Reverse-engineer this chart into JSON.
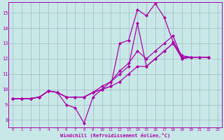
{
  "background_color": "#c8e8e8",
  "grid_color": "#a0b8c0",
  "line_color": "#aa00aa",
  "marker": "D",
  "markersize": 2.0,
  "linewidth": 0.9,
  "xlabel": "Windchill (Refroidissement éolien,°C)",
  "xlim": [
    -0.5,
    23.5
  ],
  "ylim": [
    7.5,
    15.7
  ],
  "xticks": [
    0,
    1,
    2,
    3,
    4,
    5,
    6,
    7,
    8,
    9,
    10,
    11,
    12,
    13,
    14,
    15,
    16,
    17,
    18,
    19,
    20,
    21,
    22,
    23
  ],
  "yticks": [
    8,
    9,
    10,
    11,
    12,
    13,
    14,
    15
  ],
  "series": [
    [
      9.4,
      9.4,
      9.4,
      9.5,
      9.9,
      9.8,
      9.0,
      8.8,
      7.8,
      9.5,
      10.0,
      10.2,
      13.0,
      13.2,
      15.2,
      14.8,
      15.6,
      14.7,
      13.1,
      12.2,
      12.1,
      12.1,
      12.1
    ],
    [
      9.4,
      9.4,
      9.4,
      9.5,
      9.9,
      9.8,
      9.5,
      9.5,
      9.5,
      9.8,
      10.0,
      10.5,
      11.0,
      11.5,
      14.3,
      11.5,
      12.0,
      12.5,
      13.0,
      12.1,
      12.1,
      12.1,
      12.1
    ],
    [
      9.4,
      9.4,
      9.4,
      9.5,
      9.9,
      9.8,
      9.5,
      9.5,
      9.5,
      9.8,
      10.2,
      10.5,
      11.2,
      11.7,
      12.5,
      12.0,
      12.5,
      13.0,
      13.5,
      12.0,
      12.1,
      12.1,
      12.1
    ],
    [
      9.4,
      9.4,
      9.4,
      9.5,
      9.9,
      9.8,
      9.5,
      9.5,
      9.5,
      9.8,
      10.0,
      10.2,
      10.5,
      11.0,
      11.5,
      11.5,
      12.0,
      12.5,
      13.0,
      12.0,
      12.1,
      12.1,
      12.1
    ]
  ],
  "x_start": 0
}
